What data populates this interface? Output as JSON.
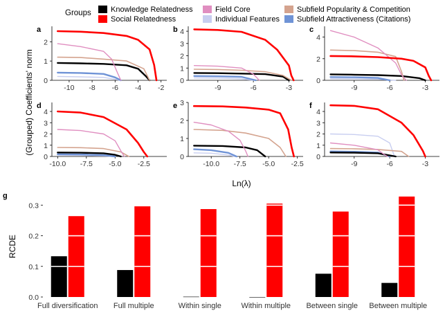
{
  "legend": {
    "title": "Groups",
    "items": [
      {
        "label": "Knowledge Relatedness",
        "color": "#000000"
      },
      {
        "label": "Social Relatedness",
        "color": "#ff0000"
      },
      {
        "label": "Field Core",
        "color": "#e08ec0"
      },
      {
        "label": "Individual Features",
        "color": "#c8cef0"
      },
      {
        "label": "Subfield Popularity & Competition",
        "color": "#d4a38e"
      },
      {
        "label": "Subfield Attractiveness (Citations)",
        "color": "#6f93d6"
      }
    ]
  },
  "shared_ylabel": "(Grouped) Coefficients' norm",
  "shared_xlabel": "Ln(λ)",
  "chart_data": [
    {
      "panel": "a",
      "type": "line",
      "xlim": [
        -11.5,
        -1.5
      ],
      "ylim": [
        0,
        2.8
      ],
      "xticks": [
        -10,
        -8,
        -6,
        -4,
        -2
      ],
      "xtick_labels": [
        "-10",
        "-8",
        "-6",
        "-4",
        "-2"
      ],
      "yticks": [
        0,
        1,
        2
      ],
      "ytick_labels": [
        "0",
        "1",
        "2"
      ],
      "series": [
        {
          "name": "Social Relatedness",
          "x": [
            -11,
            -9,
            -7,
            -5,
            -4,
            -3,
            -2.6,
            -2.4
          ],
          "y": [
            2.55,
            2.52,
            2.45,
            2.3,
            2.1,
            1.6,
            0.8,
            0
          ]
        },
        {
          "name": "Field Core",
          "x": [
            -11,
            -9,
            -7,
            -6.3,
            -5.8,
            -5.5
          ],
          "y": [
            1.9,
            1.75,
            1.5,
            1.1,
            0.4,
            0
          ]
        },
        {
          "name": "Subfield Popularity & Competition",
          "x": [
            -11,
            -9,
            -7,
            -5,
            -3.5,
            -3
          ],
          "y": [
            1.2,
            1.18,
            1.1,
            1.0,
            0.6,
            0
          ]
        },
        {
          "name": "Knowledge Relatedness",
          "x": [
            -11,
            -9,
            -7,
            -5,
            -4,
            -3.3,
            -3
          ],
          "y": [
            0.9,
            0.88,
            0.85,
            0.78,
            0.6,
            0.2,
            0
          ]
        },
        {
          "name": "Subfield Attractiveness (Citations)",
          "x": [
            -11,
            -9,
            -7,
            -6,
            -5.5
          ],
          "y": [
            0.4,
            0.38,
            0.33,
            0.15,
            0
          ]
        },
        {
          "name": "Individual Features",
          "x": [
            -11,
            -9,
            -7,
            -6,
            -5.6
          ],
          "y": [
            0.2,
            0.18,
            0.15,
            0.05,
            0
          ]
        }
      ]
    },
    {
      "panel": "b",
      "type": "line",
      "xlim": [
        -11.5,
        -1.8
      ],
      "ylim": [
        0,
        4.4
      ],
      "xticks": [
        -9,
        -6,
        -3
      ],
      "xtick_labels": [
        "-9",
        "-6",
        "-3"
      ],
      "yticks": [
        0,
        1,
        2,
        3,
        4
      ],
      "ytick_labels": [
        "0",
        "1",
        "2",
        "3",
        "4"
      ],
      "series": [
        {
          "name": "Social Relatedness",
          "x": [
            -11,
            -9,
            -7,
            -5,
            -4,
            -3,
            -2.8,
            -2.6
          ],
          "y": [
            4.15,
            4.1,
            3.95,
            3.3,
            2.5,
            1.2,
            0.4,
            0
          ]
        },
        {
          "name": "Field Core",
          "x": [
            -11,
            -9,
            -7,
            -6,
            -5.5
          ],
          "y": [
            1.2,
            1.15,
            1.0,
            0.5,
            0
          ]
        },
        {
          "name": "Subfield Popularity & Competition",
          "x": [
            -11,
            -9,
            -7,
            -5,
            -3.5,
            -2.8
          ],
          "y": [
            0.9,
            0.88,
            0.82,
            0.7,
            0.4,
            0
          ]
        },
        {
          "name": "Knowledge Relatedness",
          "x": [
            -11,
            -9,
            -7,
            -5,
            -3.5,
            -3
          ],
          "y": [
            0.6,
            0.58,
            0.55,
            0.5,
            0.3,
            0
          ]
        },
        {
          "name": "Subfield Attractiveness (Citations)",
          "x": [
            -11,
            -9,
            -7,
            -5.8
          ],
          "y": [
            0.35,
            0.33,
            0.28,
            0
          ]
        },
        {
          "name": "Individual Features",
          "x": [
            -11,
            -9,
            -7,
            -6
          ],
          "y": [
            0.2,
            0.18,
            0.12,
            0
          ]
        }
      ]
    },
    {
      "panel": "c",
      "type": "line",
      "xlim": [
        -11.5,
        -1.8
      ],
      "ylim": [
        0,
        5
      ],
      "xticks": [
        -9,
        -6,
        -3
      ],
      "xtick_labels": [
        "-9",
        "-6",
        "-3"
      ],
      "yticks": [
        0,
        2,
        4
      ],
      "ytick_labels": [
        "0",
        "2",
        "4"
      ],
      "series": [
        {
          "name": "Field Core",
          "x": [
            -11,
            -9,
            -7,
            -5.5,
            -5,
            -4.6
          ],
          "y": [
            4.6,
            4.0,
            3.0,
            1.6,
            0.5,
            0
          ]
        },
        {
          "name": "Subfield Popularity & Competition",
          "x": [
            -11,
            -9,
            -7,
            -5.5,
            -5,
            -4.8
          ],
          "y": [
            2.8,
            2.75,
            2.6,
            2.2,
            0.8,
            0
          ]
        },
        {
          "name": "Social Relatedness",
          "x": [
            -11,
            -9,
            -7,
            -5,
            -4,
            -3,
            -2.7,
            -2.5
          ],
          "y": [
            2.25,
            2.22,
            2.15,
            2.0,
            1.8,
            1.2,
            0.4,
            0
          ]
        },
        {
          "name": "Knowledge Relatedness",
          "x": [
            -11,
            -9,
            -7,
            -5,
            -3.5,
            -3
          ],
          "y": [
            0.55,
            0.52,
            0.48,
            0.4,
            0.2,
            0
          ]
        },
        {
          "name": "Subfield Attractiveness (Citations)",
          "x": [
            -11,
            -9,
            -7,
            -6
          ],
          "y": [
            0.3,
            0.28,
            0.22,
            0
          ]
        },
        {
          "name": "Individual Features",
          "x": [
            -11,
            -9,
            -7,
            -5.5
          ],
          "y": [
            0.15,
            0.14,
            0.1,
            0
          ]
        }
      ]
    },
    {
      "panel": "d",
      "type": "line",
      "xlim": [
        -10.5,
        -0.5
      ],
      "ylim": [
        0,
        4.8
      ],
      "xticks": [
        -10,
        -7.5,
        -5,
        -2.5
      ],
      "xtick_labels": [
        "-10.0",
        "-7.5",
        "-5.0",
        "-2.5"
      ],
      "yticks": [
        0,
        1,
        2,
        3,
        4
      ],
      "ytick_labels": [
        "0",
        "1",
        "2",
        "3",
        "4"
      ],
      "series": [
        {
          "name": "Social Relatedness",
          "x": [
            -10,
            -8,
            -6,
            -4,
            -3,
            -2.5,
            -2.2
          ],
          "y": [
            4.0,
            3.9,
            3.5,
            2.4,
            1.2,
            0.4,
            0
          ]
        },
        {
          "name": "Field Core",
          "x": [
            -10,
            -8,
            -6,
            -5,
            -4.5,
            -4.2
          ],
          "y": [
            2.4,
            2.3,
            2.0,
            1.4,
            0.5,
            0
          ]
        },
        {
          "name": "Subfield Popularity & Competition",
          "x": [
            -10,
            -8,
            -6,
            -4.5,
            -3.8
          ],
          "y": [
            0.8,
            0.78,
            0.7,
            0.4,
            0
          ]
        },
        {
          "name": "Knowledge Relatedness",
          "x": [
            -10,
            -8,
            -6,
            -5,
            -4.5
          ],
          "y": [
            0.35,
            0.33,
            0.28,
            0.15,
            0
          ]
        },
        {
          "name": "Subfield Attractiveness (Citations)",
          "x": [
            -10,
            -8,
            -6,
            -5
          ],
          "y": [
            0.2,
            0.18,
            0.12,
            0
          ]
        },
        {
          "name": "Individual Features",
          "x": [
            -10,
            -8,
            -6,
            -5.2
          ],
          "y": [
            0.12,
            0.1,
            0.05,
            0
          ]
        }
      ]
    },
    {
      "panel": "e",
      "type": "line",
      "xlim": [
        -12,
        -2
      ],
      "ylim": [
        0,
        3
      ],
      "xticks": [
        -10,
        -7.5,
        -5,
        -2.5
      ],
      "xtick_labels": [
        "-10.0",
        "-7.5",
        "-5.0",
        "-2.5"
      ],
      "yticks": [
        0,
        1,
        2,
        3
      ],
      "ytick_labels": [
        "0",
        "1",
        "2",
        "3"
      ],
      "series": [
        {
          "name": "Social Relatedness",
          "x": [
            -11.5,
            -9,
            -7,
            -5,
            -4,
            -3.3,
            -3,
            -2.8
          ],
          "y": [
            2.8,
            2.78,
            2.72,
            2.6,
            2.4,
            1.5,
            0.5,
            0
          ]
        },
        {
          "name": "Field Core",
          "x": [
            -11.5,
            -10,
            -8.5,
            -7.5,
            -7,
            -6.8
          ],
          "y": [
            1.9,
            1.75,
            1.4,
            0.9,
            0.3,
            0
          ]
        },
        {
          "name": "Subfield Popularity & Competition",
          "x": [
            -11.5,
            -9,
            -7,
            -5,
            -4,
            -3.5
          ],
          "y": [
            1.5,
            1.45,
            1.3,
            1.0,
            0.5,
            0
          ]
        },
        {
          "name": "Knowledge Relatedness",
          "x": [
            -11.5,
            -9,
            -7,
            -6,
            -5.5,
            -5.3
          ],
          "y": [
            0.6,
            0.58,
            0.5,
            0.35,
            0.1,
            0
          ]
        },
        {
          "name": "Subfield Attractiveness (Citations)",
          "x": [
            -11.5,
            -10,
            -8.5,
            -7.8
          ],
          "y": [
            0.4,
            0.35,
            0.2,
            0
          ]
        },
        {
          "name": "Individual Features",
          "x": [
            -11.5,
            -10,
            -8.5,
            -8
          ],
          "y": [
            0.2,
            0.18,
            0.08,
            0
          ]
        }
      ]
    },
    {
      "panel": "f",
      "type": "line",
      "xlim": [
        -11.5,
        -1.8
      ],
      "ylim": [
        0,
        4.8
      ],
      "xticks": [
        -9,
        -6,
        -3
      ],
      "xtick_labels": [
        "-9",
        "-6",
        "-3"
      ],
      "yticks": [
        0,
        1,
        2,
        3,
        4
      ],
      "ytick_labels": [
        "0",
        "1",
        "2",
        "3",
        "4"
      ],
      "series": [
        {
          "name": "Social Relatedness",
          "x": [
            -11,
            -9,
            -7,
            -5,
            -4,
            -3.2,
            -3
          ],
          "y": [
            4.55,
            4.5,
            4.2,
            3.0,
            1.9,
            0.5,
            0
          ]
        },
        {
          "name": "Individual Features",
          "x": [
            -11,
            -9,
            -7,
            -6,
            -5.6
          ],
          "y": [
            2.0,
            1.95,
            1.8,
            1.2,
            0
          ]
        },
        {
          "name": "Field Core",
          "x": [
            -11,
            -9,
            -7,
            -6.5,
            -6.2
          ],
          "y": [
            1.2,
            1.0,
            0.6,
            0.2,
            0
          ]
        },
        {
          "name": "Subfield Popularity & Competition",
          "x": [
            -11,
            -9,
            -7,
            -5,
            -4.4
          ],
          "y": [
            0.7,
            0.68,
            0.62,
            0.45,
            0
          ]
        },
        {
          "name": "Knowledge Relatedness",
          "x": [
            -11,
            -9,
            -7,
            -5.5
          ],
          "y": [
            0.35,
            0.33,
            0.28,
            0
          ]
        },
        {
          "name": "Subfield Attractiveness (Citations)",
          "x": [
            -11,
            -9,
            -7,
            -6
          ],
          "y": [
            0.45,
            0.42,
            0.35,
            0
          ]
        }
      ]
    },
    {
      "panel": "g",
      "type": "bar",
      "ylabel": "RCDE",
      "ylim": [
        0,
        0.33
      ],
      "yticks": [
        0,
        0.1,
        0.2,
        0.3
      ],
      "ytick_labels": [
        "0.0",
        "0.1",
        "0.2",
        "0.3"
      ],
      "categories": [
        "Full diversification",
        "Full multiple",
        "Within single",
        "Within multiple",
        "Between single",
        "Between multiple"
      ],
      "series": [
        {
          "name": "Knowledge Relatedness",
          "color": "#000000",
          "values": [
            0.133,
            0.088,
            0.001,
            0.0,
            0.076,
            0.046
          ]
        },
        {
          "name": "Social Relatedness",
          "color": "#ff0000",
          "values": [
            0.264,
            0.296,
            0.287,
            0.305,
            0.279,
            0.328
          ]
        }
      ]
    }
  ]
}
